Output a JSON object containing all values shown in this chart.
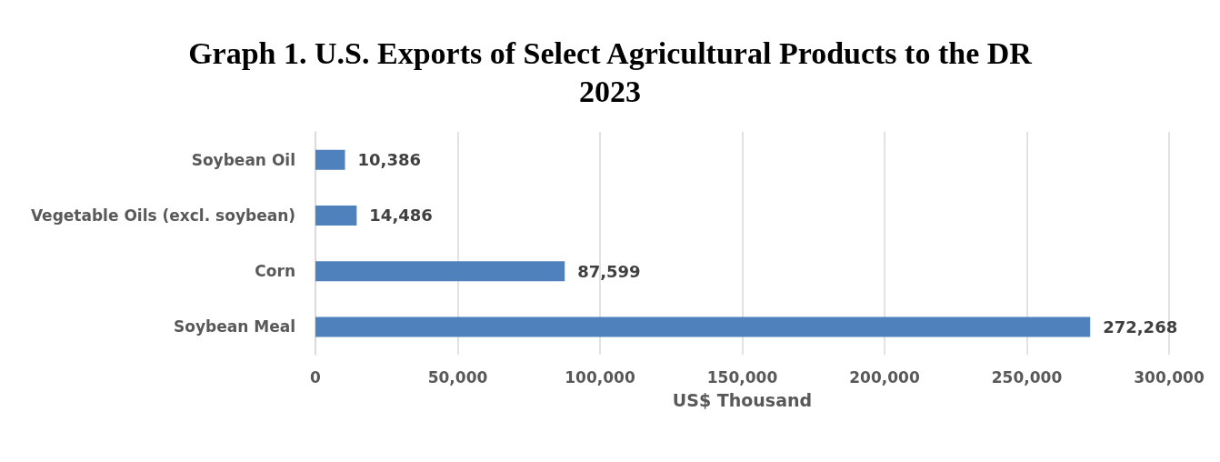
{
  "chart_data": {
    "type": "bar",
    "orientation": "horizontal",
    "title": "Graph 1. U.S. Exports of Select Agricultural Products to the DR\n2023",
    "categories": [
      "Soybean Oil",
      "Vegetable Oils (excl. soybean)",
      "Corn",
      "Soybean Meal"
    ],
    "values": [
      10386,
      14486,
      87599,
      272268
    ],
    "value_labels": [
      "10,386",
      "14,486",
      "87,599",
      "272,268"
    ],
    "color": "#4f81bd",
    "xlabel": "US$ Thousand",
    "xlim": [
      0,
      300000
    ],
    "xticks": [
      0,
      {
        "value": 50000,
        "label": "50,000"
      },
      {
        "value": 100000,
        "label": "100,000"
      },
      {
        "value": 150000,
        "label": "150,000"
      },
      {
        "value": 200000,
        "label": "200,000"
      },
      {
        "value": 250000,
        "label": "250,000"
      },
      {
        "value": 300000,
        "label": "300,000"
      }
    ],
    "grid": "x"
  }
}
